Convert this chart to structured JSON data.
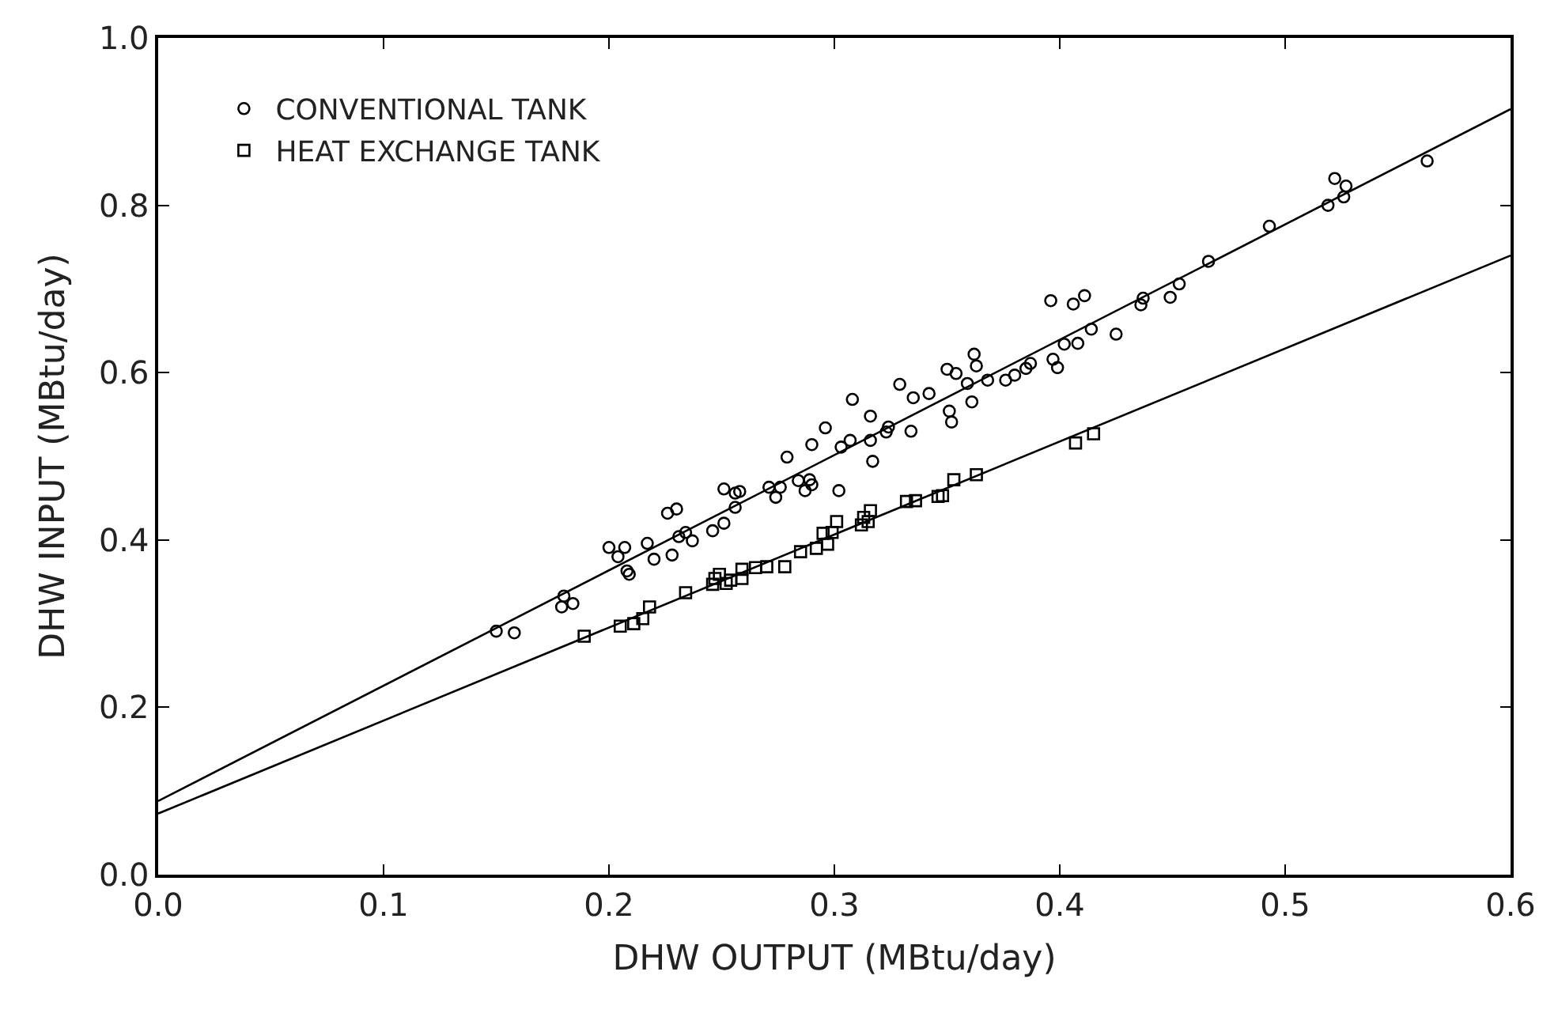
{
  "chart_data": {
    "type": "scatter",
    "xlabel": "DHW OUTPUT (MBtu/day)",
    "ylabel": "DHW INPUT (MBtu/day)",
    "xlim": [
      0,
      0.6
    ],
    "ylim": [
      0,
      1.0
    ],
    "xticks": [
      {
        "value": 0,
        "label": "0.0"
      },
      0.1,
      0.2,
      0.3,
      0.4,
      0.5,
      0.6
    ],
    "yticks": [
      {
        "value": 0,
        "label": "0.0"
      },
      0.2,
      0.4,
      0.6,
      0.8,
      {
        "value": 1,
        "label": "1.0"
      }
    ],
    "grid": false,
    "legend": "top left",
    "series": [
      {
        "name": "CONVENTIONAL TANK",
        "color": "#000000",
        "marker": "circle",
        "x": [
          0.15,
          0.158,
          0.18,
          0.179,
          0.184,
          0.2,
          0.207,
          0.204,
          0.208,
          0.209,
          0.217,
          0.22,
          0.226,
          0.23,
          0.228,
          0.231,
          0.237,
          0.234,
          0.246,
          0.251,
          0.251,
          0.256,
          0.258,
          0.256,
          0.271,
          0.274,
          0.279,
          0.276,
          0.284,
          0.287,
          0.29,
          0.289,
          0.29,
          0.296,
          0.302,
          0.303,
          0.308,
          0.307,
          0.316,
          0.317,
          0.316,
          0.323,
          0.324,
          0.329,
          0.334,
          0.335,
          0.342,
          0.35,
          0.351,
          0.352,
          0.354,
          0.359,
          0.361,
          0.362,
          0.363,
          0.368,
          0.376,
          0.38,
          0.385,
          0.387,
          0.396,
          0.397,
          0.399,
          0.402,
          0.406,
          0.411,
          0.408,
          0.414,
          0.425,
          0.436,
          0.437,
          0.449,
          0.453,
          0.466,
          0.493,
          0.519,
          0.522,
          0.527,
          0.526,
          0.563
        ],
        "values": [
          0.291,
          0.289,
          0.333,
          0.32,
          0.324,
          0.391,
          0.391,
          0.38,
          0.363,
          0.359,
          0.396,
          0.377,
          0.432,
          0.437,
          0.382,
          0.404,
          0.399,
          0.409,
          0.411,
          0.42,
          0.461,
          0.456,
          0.458,
          0.439,
          0.463,
          0.451,
          0.499,
          0.463,
          0.471,
          0.459,
          0.466,
          0.472,
          0.514,
          0.534,
          0.459,
          0.511,
          0.568,
          0.519,
          0.548,
          0.494,
          0.519,
          0.529,
          0.535,
          0.586,
          0.53,
          0.57,
          0.575,
          0.604,
          0.554,
          0.541,
          0.599,
          0.587,
          0.565,
          0.622,
          0.608,
          0.591,
          0.591,
          0.597,
          0.605,
          0.611,
          0.686,
          0.616,
          0.606,
          0.634,
          0.682,
          0.692,
          0.635,
          0.652,
          0.646,
          0.681,
          0.689,
          0.69,
          0.706,
          0.733,
          0.775,
          0.8,
          0.832,
          0.823,
          0.81,
          0.853
        ]
      },
      {
        "name": "HEAT EXCHANGE TANK",
        "color": "#000000",
        "marker": "square",
        "x": [
          0.189,
          0.205,
          0.211,
          0.215,
          0.218,
          0.234,
          0.246,
          0.247,
          0.249,
          0.252,
          0.254,
          0.259,
          0.259,
          0.265,
          0.27,
          0.278,
          0.285,
          0.292,
          0.297,
          0.295,
          0.299,
          0.301,
          0.312,
          0.313,
          0.315,
          0.316,
          0.332,
          0.336,
          0.346,
          0.348,
          0.353,
          0.363,
          0.407,
          0.415
        ],
        "values": [
          0.285,
          0.297,
          0.3,
          0.306,
          0.32,
          0.337,
          0.347,
          0.354,
          0.359,
          0.348,
          0.352,
          0.354,
          0.365,
          0.367,
          0.368,
          0.368,
          0.386,
          0.39,
          0.395,
          0.408,
          0.409,
          0.422,
          0.418,
          0.427,
          0.422,
          0.435,
          0.446,
          0.447,
          0.452,
          0.453,
          0.472,
          0.478,
          0.516,
          0.527
        ]
      },
      {
        "type": "line",
        "color": "#000000",
        "line_style": "solid",
        "x": [
          0,
          0.6
        ],
        "values": [
          0.088,
          0.915
        ]
      },
      {
        "type": "line",
        "color": "#000000",
        "line_style": "solid",
        "x": [
          0,
          0.6
        ],
        "values": [
          0.073,
          0.74
        ]
      }
    ]
  }
}
